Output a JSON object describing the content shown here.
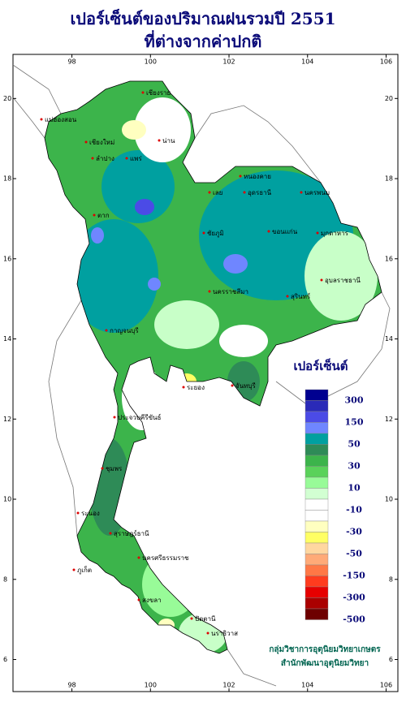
{
  "header": {
    "title_line1": "เปอร์เซ็นต์ของปริมาณฝนรวมปี  2551",
    "title_line2": "ที่ต่างจากค่าปกติ"
  },
  "map": {
    "lonlim": [
      96.5,
      106.3
    ],
    "latlim": [
      5.2,
      21.1
    ],
    "lon_ticks": [
      98,
      100,
      102,
      104,
      106
    ],
    "lat_ticks": [
      6,
      8,
      10,
      12,
      14,
      16,
      18,
      20
    ],
    "places": [
      "เชียงราย",
      "แม่ฮ่องสอน",
      "น่าน",
      "เชียงใหม่",
      "ลำปาง",
      "แพร่",
      "หนองคาย",
      "อุดรธานี",
      "นครพนม",
      "เลย",
      "ตาก",
      "ขอนแก่น",
      "ชัยภูมิ",
      "มุกดาหาร",
      "นครราชสีมา",
      "อุบลราชธานี",
      "สุรินทร์",
      "กาญจนบุรี",
      "ระยอง",
      "จันทบุรี",
      "ประจวบคีรีขันธ์",
      "ชุมพร",
      "ระนอง",
      "สุราษฎร์ธานี",
      "ภูเก็ต",
      "นครศรีธรรมราช",
      "สงขลา",
      "ปัตตานี",
      "นราธิวาส"
    ]
  },
  "legend": {
    "title": "เปอร์เซ็นต์",
    "bins": [
      {
        "color": "#000090",
        "label": "300"
      },
      {
        "color": "#2a2ab8",
        "label": null
      },
      {
        "color": "#4b4be6",
        "label": "150"
      },
      {
        "color": "#6f86ff",
        "label": null
      },
      {
        "color": "#00a0a0",
        "label": "50"
      },
      {
        "color": "#2e8b57",
        "label": null
      },
      {
        "color": "#3cb44b",
        "label": "30"
      },
      {
        "color": "#5ad25a",
        "label": null
      },
      {
        "color": "#98fb98",
        "label": "10"
      },
      {
        "color": "#d2ffd2",
        "label": null
      },
      {
        "color": "#ffffff",
        "label": "-10"
      },
      {
        "color": "#ffffff",
        "label": null
      },
      {
        "color": "#ffffc0",
        "label": "-30"
      },
      {
        "color": "#ffff64",
        "label": null
      },
      {
        "color": "#ffd7a0",
        "label": "-50"
      },
      {
        "color": "#ffaa78",
        "label": null
      },
      {
        "color": "#ff7846",
        "label": "-150"
      },
      {
        "color": "#ff3c1e",
        "label": null
      },
      {
        "color": "#e60000",
        "label": "-300"
      },
      {
        "color": "#aa0000",
        "label": null
      },
      {
        "color": "#6e0000",
        "label": "-500"
      }
    ]
  },
  "credits": {
    "line1": "กลุ่มวิชาการอุตุนิยมวิทยาเกษตร",
    "line2": "สำนักพัฒนาอุตุนิยมวิทยา"
  }
}
